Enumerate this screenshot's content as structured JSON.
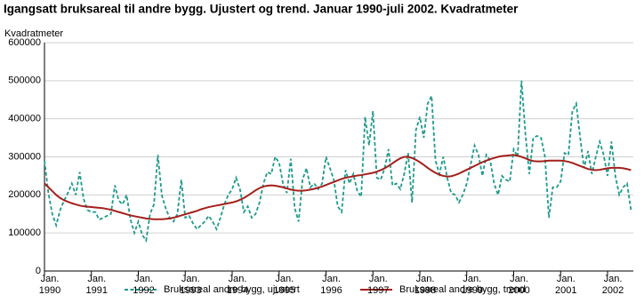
{
  "chart_data": {
    "type": "line",
    "title": "Igangsatt bruksareal til andre bygg. Ujustert og trend. Januar 1990-juli 2002. Kvadratmeter",
    "y_label": "Kvadratmeter",
    "categories": [
      "Jan.\n1990",
      null,
      null,
      null,
      null,
      null,
      null,
      null,
      null,
      null,
      null,
      null,
      "Jan.\n1991",
      null,
      null,
      null,
      null,
      null,
      null,
      null,
      null,
      null,
      null,
      null,
      "Jan.\n1992",
      null,
      null,
      null,
      null,
      null,
      null,
      null,
      null,
      null,
      null,
      null,
      "Jan.\n1993",
      null,
      null,
      null,
      null,
      null,
      null,
      null,
      null,
      null,
      null,
      null,
      "Jan.\n1994",
      null,
      null,
      null,
      null,
      null,
      null,
      null,
      null,
      null,
      null,
      null,
      "Jan.\n1995",
      null,
      null,
      null,
      null,
      null,
      null,
      null,
      null,
      null,
      null,
      null,
      "Jan.\n1996",
      null,
      null,
      null,
      null,
      null,
      null,
      null,
      null,
      null,
      null,
      null,
      "Jan.\n1997",
      null,
      null,
      null,
      null,
      null,
      null,
      null,
      null,
      null,
      null,
      null,
      "Jan.\n1998",
      null,
      null,
      null,
      null,
      null,
      null,
      null,
      null,
      null,
      null,
      null,
      "Jan.\n1999",
      null,
      null,
      null,
      null,
      null,
      null,
      null,
      null,
      null,
      null,
      null,
      "Jan.\n2000",
      null,
      null,
      null,
      null,
      null,
      null,
      null,
      null,
      null,
      null,
      null,
      "Jan.\n2001",
      null,
      null,
      null,
      null,
      null,
      null,
      null,
      null,
      null,
      null,
      null,
      "Jan.\n2002",
      null,
      null,
      null,
      null,
      null,
      null
    ],
    "series": [
      {
        "name": "Bruksareal andre bygg, ujustert",
        "color": "#1f9a8a",
        "dashed": true,
        "values": [
          290000,
          205000,
          150000,
          120000,
          160000,
          185000,
          205000,
          230000,
          200000,
          260000,
          190000,
          160000,
          155000,
          155000,
          135000,
          140000,
          145000,
          150000,
          225000,
          185000,
          175000,
          200000,
          135000,
          100000,
          130000,
          95000,
          80000,
          150000,
          175000,
          305000,
          200000,
          165000,
          140000,
          130000,
          150000,
          240000,
          140000,
          145000,
          125000,
          110000,
          120000,
          130000,
          145000,
          130000,
          110000,
          140000,
          175000,
          200000,
          215000,
          245000,
          215000,
          155000,
          170000,
          140000,
          150000,
          180000,
          230000,
          260000,
          255000,
          300000,
          285000,
          230000,
          205000,
          295000,
          165000,
          130000,
          240000,
          270000,
          220000,
          230000,
          215000,
          230000,
          300000,
          270000,
          240000,
          170000,
          155000,
          265000,
          230000,
          255000,
          210000,
          195000,
          405000,
          330000,
          420000,
          245000,
          240000,
          270000,
          320000,
          225000,
          230000,
          215000,
          255000,
          310000,
          180000,
          370000,
          405000,
          350000,
          440000,
          460000,
          290000,
          255000,
          300000,
          245000,
          205000,
          200000,
          180000,
          200000,
          230000,
          280000,
          330000,
          305000,
          250000,
          305000,
          290000,
          230000,
          200000,
          250000,
          240000,
          235000,
          320000,
          300000,
          500000,
          360000,
          255000,
          350000,
          355000,
          350000,
          300000,
          140000,
          220000,
          220000,
          235000,
          310000,
          305000,
          420000,
          440000,
          350000,
          270000,
          315000,
          255000,
          300000,
          340000,
          305000,
          250000,
          340000,
          250000,
          200000,
          220000,
          230000,
          160000
        ]
      },
      {
        "name": "Bruksareal andre bygg, trend",
        "color": "#a3201c",
        "dashed": false,
        "values": [
          230000,
          220000,
          210000,
          200000,
          192000,
          186000,
          182000,
          178000,
          175000,
          172000,
          170000,
          169000,
          168000,
          167000,
          166000,
          165000,
          163000,
          161000,
          158000,
          155000,
          152000,
          149000,
          146000,
          144000,
          142000,
          140000,
          138000,
          137000,
          136000,
          136000,
          136000,
          137000,
          138000,
          140000,
          143000,
          146000,
          149000,
          152000,
          155000,
          158000,
          162000,
          165000,
          168000,
          170000,
          172000,
          174000,
          176000,
          178000,
          180000,
          183000,
          187000,
          192000,
          198000,
          205000,
          212000,
          218000,
          222000,
          224000,
          225000,
          224000,
          222000,
          220000,
          217000,
          214000,
          212000,
          211000,
          211000,
          212000,
          214000,
          216000,
          219000,
          222000,
          226000,
          230000,
          234000,
          238000,
          242000,
          245000,
          247000,
          249000,
          251000,
          252000,
          254000,
          256000,
          258000,
          261000,
          265000,
          270000,
          276000,
          283000,
          290000,
          296000,
          300000,
          300000,
          297000,
          292000,
          286000,
          279000,
          271000,
          264000,
          258000,
          253000,
          250000,
          248000,
          249000,
          252000,
          256000,
          261000,
          266000,
          271000,
          276000,
          281000,
          286000,
          290000,
          294000,
          297000,
          300000,
          302000,
          303000,
          304000,
          305000,
          303000,
          300000,
          296000,
          292000,
          289000,
          288000,
          288000,
          289000,
          290000,
          290000,
          290000,
          290000,
          289000,
          287000,
          284000,
          280000,
          276000,
          272000,
          268000,
          266000,
          265000,
          266000,
          268000,
          270000,
          271000,
          271000,
          271000,
          270000,
          268000,
          265000
        ]
      }
    ],
    "ylim": [
      0,
      600000
    ],
    "yticks": [
      0,
      100000,
      200000,
      300000,
      400000,
      500000,
      600000
    ],
    "grid": true
  }
}
